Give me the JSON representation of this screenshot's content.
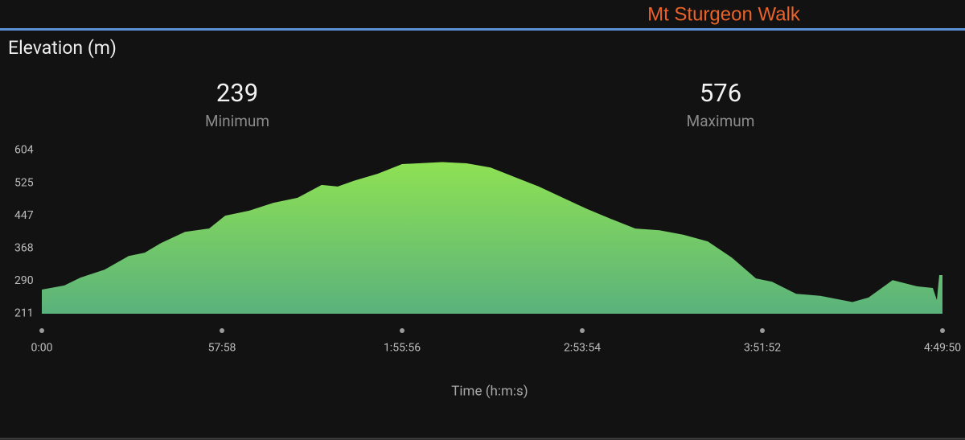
{
  "header": {
    "title": "Mt Sturgeon Walk"
  },
  "panel": {
    "title": "Elevation (m)"
  },
  "summary": [
    {
      "value": 239,
      "label": "Minimum"
    },
    {
      "value": 576,
      "label": "Maximum"
    }
  ],
  "chart_data": {
    "type": "area",
    "x_label": "Time (h:m:s)",
    "colors": [
      "#8ee153",
      "#5ab27c"
    ],
    "x": [
      0,
      435,
      745,
      1211,
      1677,
      1987,
      2298,
      2764,
      3230,
      3540,
      4006,
      4472,
      4938,
      5404,
      5714,
      6025,
      6490,
      6956,
      7733,
      8198,
      8664,
      9130,
      9596,
      10062,
      10527,
      10993,
      11459,
      11925,
      12391,
      12857,
      13323,
      13788,
      14099,
      14564,
      15030,
      15651,
      15962,
      16428,
      16893,
      17204,
      17281,
      17328,
      17390
    ],
    "values": [
      269,
      279,
      298,
      317,
      350,
      358,
      381,
      408,
      416,
      447,
      459,
      478,
      490,
      521,
      517,
      531,
      548,
      571,
      576,
      573,
      563,
      540,
      517,
      490,
      463,
      439,
      416,
      412,
      401,
      385,
      346,
      296,
      288,
      259,
      254,
      239,
      250,
      292,
      277,
      273,
      244,
      304,
      304
    ],
    "xlim": [
      0,
      17390
    ],
    "xticks": [
      {
        "value": 0,
        "label": "0:00"
      },
      {
        "value": 3478,
        "label": "57:58"
      },
      {
        "value": 6956,
        "label": "1:55:56"
      },
      {
        "value": 10434,
        "label": "2:53:54"
      },
      {
        "value": 13912,
        "label": "3:51:52"
      },
      {
        "value": 17390,
        "label": "4:49:50"
      }
    ],
    "ylim": [
      211,
      604
    ],
    "yticks": [
      211,
      290,
      368,
      447,
      525,
      604
    ]
  }
}
